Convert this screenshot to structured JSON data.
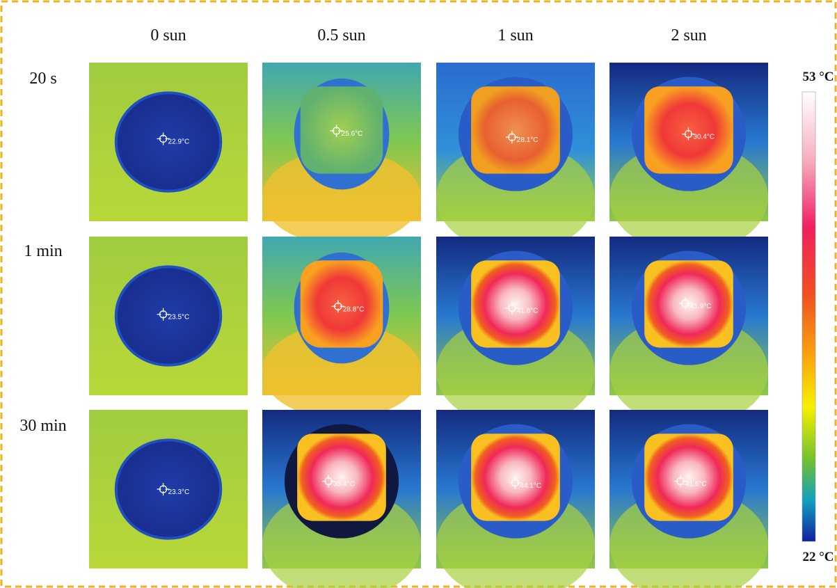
{
  "columns": [
    "0 sun",
    "0.5 sun",
    "1 sun",
    "2 sun"
  ],
  "rows": [
    "20 s",
    "1 min",
    "30 min"
  ],
  "readings": [
    [
      "22.9°C",
      "25.6°C",
      "28.1°C",
      "30.4°C"
    ],
    [
      "23.5°C",
      "28.8°C",
      "41.8°C",
      "41.9°C"
    ],
    [
      "23.3°C",
      "35.4°C",
      "44.1°C",
      "41.6°C"
    ]
  ],
  "colorbar": {
    "max": "53 °C",
    "min": "22 °C"
  }
}
